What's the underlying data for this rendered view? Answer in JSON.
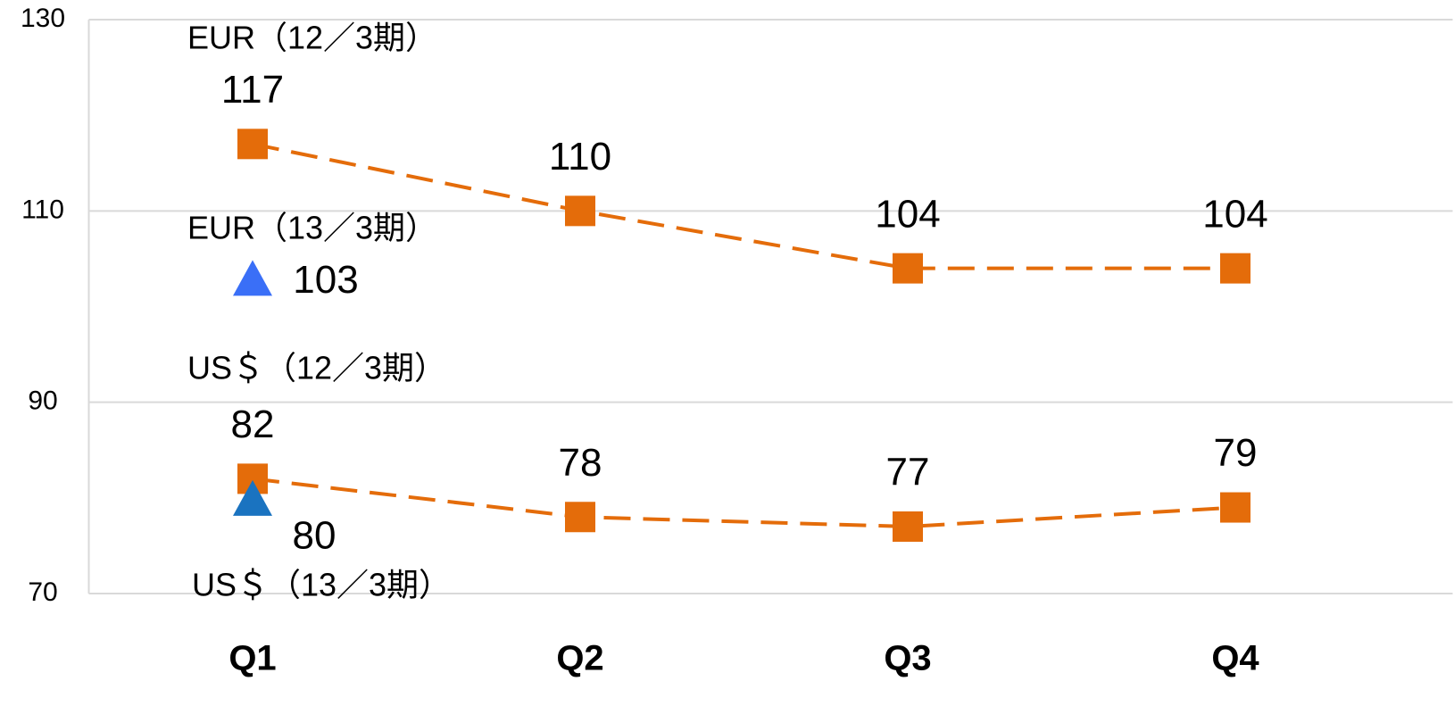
{
  "chart_data": {
    "type": "line",
    "categories": [
      "Q1",
      "Q2",
      "Q3",
      "Q4"
    ],
    "series": [
      {
        "name": "EUR（12／3期）",
        "color": "#e46c0a",
        "marker": "square",
        "values": [
          117,
          110,
          104,
          104
        ]
      },
      {
        "name": "EUR（13／3期）",
        "color": "#3a6ff7",
        "marker": "triangle",
        "values": [
          103,
          null,
          null,
          null
        ]
      },
      {
        "name": "US＄（12／3期）",
        "color": "#e46c0a",
        "marker": "square",
        "values": [
          82,
          78,
          77,
          79
        ]
      },
      {
        "name": "US＄（13／3期）",
        "color": "#1a73c0",
        "marker": "triangle",
        "values": [
          80,
          null,
          null,
          null
        ]
      }
    ],
    "ylim": [
      70,
      130
    ],
    "yticks": [
      70,
      90,
      110,
      130
    ],
    "grid": true
  }
}
